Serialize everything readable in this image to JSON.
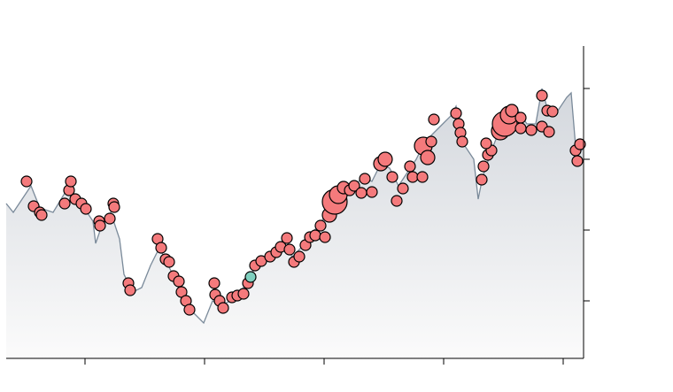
{
  "chart_data": [
    {
      "type": "area",
      "color": "#7a8a9a",
      "fill_top": "#d3d7dd",
      "fill_bottom": "#fbfbfb",
      "xlim": [
        7,
        659
      ],
      "ylim": [
        38,
        391
      ],
      "xticks": [
        96,
        231,
        366,
        501,
        636
      ],
      "yticks": [
        103,
        183,
        263,
        343
      ],
      "x": [
        7,
        15,
        25,
        35,
        45,
        60,
        75,
        85,
        95,
        105,
        108,
        115,
        125,
        135,
        140,
        150,
        160,
        170,
        180,
        190,
        200,
        210,
        220,
        230,
        240,
        250,
        260,
        270,
        280,
        290,
        300,
        310,
        320,
        330,
        340,
        350,
        360,
        370,
        380,
        390,
        400,
        410,
        420,
        430,
        440,
        450,
        460,
        470,
        480,
        490,
        500,
        510,
        515,
        525,
        535,
        540,
        545,
        555,
        565,
        575,
        585,
        595,
        605,
        612,
        620,
        630,
        640,
        645,
        650,
        658
      ],
      "values": [
        213,
        203,
        218,
        233,
        208,
        203,
        228,
        218,
        208,
        193,
        168,
        188,
        203,
        173,
        133,
        113,
        118,
        143,
        163,
        143,
        123,
        98,
        88,
        78,
        103,
        98,
        103,
        108,
        128,
        143,
        153,
        158,
        168,
        153,
        163,
        178,
        188,
        203,
        218,
        228,
        233,
        243,
        238,
        258,
        253,
        233,
        248,
        263,
        283,
        293,
        303,
        313,
        323,
        278,
        263,
        218,
        243,
        273,
        298,
        313,
        318,
        303,
        303,
        343,
        313,
        318,
        333,
        338,
        278,
        273
      ]
    },
    {
      "type": "scatter",
      "xlim": [
        7,
        659
      ],
      "ylim": [
        38,
        391
      ],
      "series": [
        {
          "color": "#f47a7c",
          "x": [
            30,
            38,
            45,
            47,
            73,
            78,
            80,
            85,
            92,
            97,
            112,
            113,
            124,
            128,
            129,
            145,
            147,
            178,
            182,
            187,
            191,
            196,
            202,
            205,
            210,
            214,
            242,
            243,
            248,
            252,
            262,
            268,
            275,
            280,
            288,
            295,
            305,
            312,
            317,
            324,
            327,
            332,
            338,
            345,
            350,
            356,
            362,
            367,
            372,
            378,
            382,
            388,
            395,
            400,
            408,
            412,
            420,
            430,
            435,
            443,
            448,
            455,
            463,
            466,
            477,
            478,
            483,
            487,
            490,
            515,
            518,
            520,
            522,
            544,
            546,
            551,
            555,
            549,
            565,
            570,
            575,
            578,
            588,
            588,
            600,
            612,
            612,
            618,
            620,
            624,
            650,
            652,
            655
          ],
          "values": [
            238,
            210,
            203,
            200,
            213,
            228,
            238,
            218,
            213,
            207,
            193,
            188,
            196,
            213,
            209,
            123,
            115,
            173,
            163,
            150,
            147,
            131,
            125,
            113,
            103,
            93,
            123,
            110,
            103,
            95,
            107,
            109,
            111,
            123,
            143,
            148,
            153,
            158,
            164,
            174,
            161,
            147,
            153,
            166,
            175,
            177,
            188,
            175,
            200,
            215,
            223,
            231,
            228,
            233,
            225,
            241,
            226,
            258,
            263,
            243,
            216,
            230,
            255,
            243,
            243,
            278,
            265,
            283,
            308,
            315,
            303,
            293,
            283,
            240,
            255,
            268,
            273,
            281,
            295,
            303,
            313,
            318,
            310,
            298,
            296,
            335,
            300,
            318,
            294,
            317,
            273,
            261,
            280
          ],
          "sizes": [
            6,
            6,
            6,
            6,
            6,
            6,
            6,
            6,
            6,
            6,
            6,
            6,
            6,
            6,
            6,
            6,
            6,
            6,
            6,
            6,
            6,
            6,
            6,
            6,
            6,
            6,
            6,
            6,
            6,
            6,
            6,
            6,
            6,
            6,
            6,
            6,
            6,
            6,
            6,
            6,
            6,
            6,
            6,
            6,
            6,
            6,
            6,
            6,
            8,
            14,
            10,
            7,
            6,
            6,
            6,
            6,
            6,
            8,
            8,
            6,
            6,
            6,
            6,
            6,
            6,
            10,
            8,
            6,
            6,
            6,
            6,
            6,
            6,
            6,
            6,
            6,
            6,
            6,
            10,
            14,
            10,
            7,
            6,
            6,
            6,
            6,
            6,
            6,
            6,
            6,
            6,
            6,
            6
          ]
        },
        {
          "color": "#7fd0bf",
          "x": [
            283
          ],
          "values": [
            130
          ],
          "sizes": [
            6
          ]
        }
      ]
    }
  ]
}
